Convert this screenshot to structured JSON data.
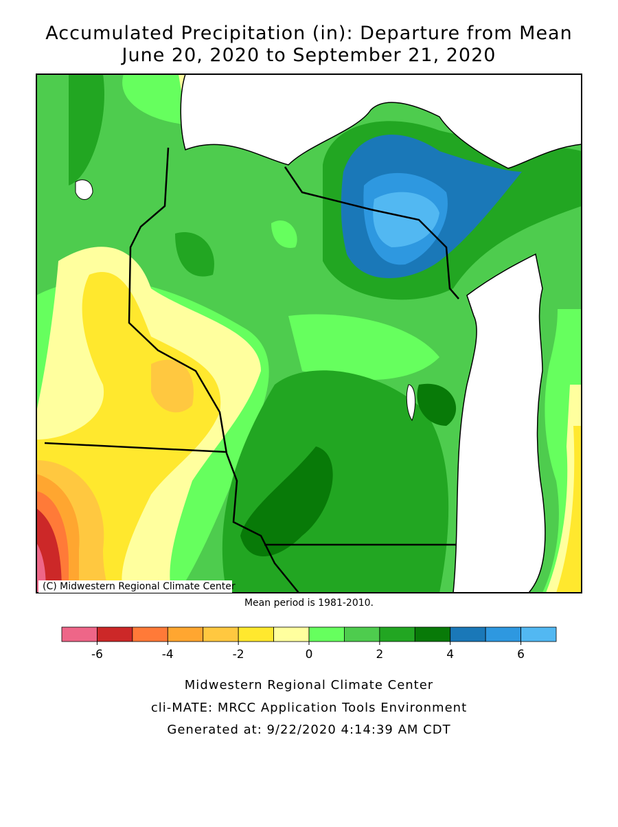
{
  "header": {
    "title": "Accumulated Precipitation (in): Departure from Mean",
    "subtitle": "June 20, 2020 to September 21, 2020"
  },
  "map": {
    "copyright": "(C) Midwestern Regional Climate Center",
    "note": "Mean period is 1981-2010."
  },
  "legend": {
    "bounds": [
      -7,
      -6,
      -5,
      -4,
      -3,
      -2,
      -1,
      0,
      1,
      2,
      3,
      4,
      5,
      6,
      7
    ],
    "colors": [
      "#ee6688",
      "#cc2828",
      "#ff7a38",
      "#ffa630",
      "#ffc840",
      "#ffe82e",
      "#ffff9e",
      "#66ff5e",
      "#4ecc4e",
      "#22a622",
      "#087a08",
      "#1a78b8",
      "#2e98e0",
      "#52b8f2"
    ],
    "ticks": [
      -6,
      -4,
      -2,
      0,
      2,
      4,
      6
    ]
  },
  "footer": {
    "lines": [
      "Midwestern Regional Climate Center",
      "cli-MATE: MRCC Application Tools Environment",
      "Generated at: 9/22/2020 4:14:39 AM CDT"
    ]
  }
}
